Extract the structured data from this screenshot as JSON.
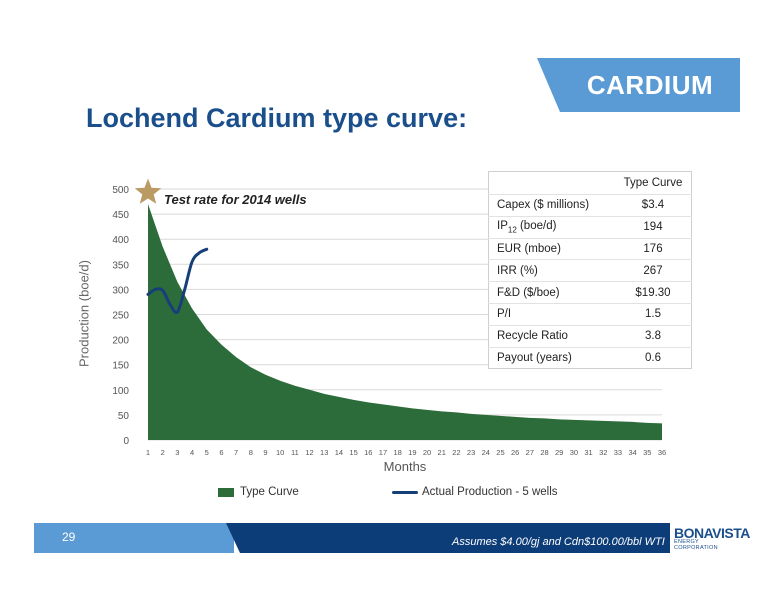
{
  "banner": {
    "text": "CARDIUM"
  },
  "title": "Lochend Cardium type curve:",
  "chart_data": {
    "type": "area",
    "ylabel": "Production (boe/d)",
    "xlabel": "Months",
    "ylim": [
      0,
      500
    ],
    "yticks": [
      0,
      50,
      100,
      150,
      200,
      250,
      300,
      350,
      400,
      450,
      500
    ],
    "x": [
      1,
      2,
      3,
      4,
      5,
      6,
      7,
      8,
      9,
      10,
      11,
      12,
      13,
      14,
      15,
      16,
      17,
      18,
      19,
      20,
      21,
      22,
      23,
      24,
      25,
      26,
      27,
      28,
      29,
      30,
      31,
      32,
      33,
      34,
      35,
      36
    ],
    "series": [
      {
        "name": "Type Curve",
        "kind": "area",
        "color": "#2c6b3a",
        "values": [
          470,
          385,
          315,
          262,
          220,
          190,
          165,
          145,
          130,
          118,
          108,
          100,
          92,
          86,
          80,
          75,
          71,
          67,
          63,
          60,
          57,
          55,
          52,
          50,
          48,
          46,
          44,
          43,
          41,
          40,
          39,
          38,
          37,
          36,
          34,
          33
        ]
      },
      {
        "name": "Actual Production - 5 wells",
        "kind": "line",
        "color": "#163f7a",
        "x": [
          1,
          1.5,
          2,
          2.5,
          3,
          3.5,
          4,
          4.5,
          5
        ],
        "values": [
          290,
          300,
          298,
          270,
          255,
          300,
          355,
          373,
          380
        ]
      }
    ],
    "annotation": {
      "text": "Test rate for 2014 wells",
      "x": 1,
      "y": 493,
      "marker": "star",
      "marker_color": "#b99b63"
    },
    "grid": true,
    "legend": "bottom"
  },
  "metrics_table": {
    "header": "Type Curve",
    "rows": [
      {
        "label": "Capex ($ millions)",
        "value": "$3.4"
      },
      {
        "label": "IP",
        "label_sub": "12",
        "label_after": " (boe/d)",
        "value": "194"
      },
      {
        "label": "EUR (mboe)",
        "value": "176"
      },
      {
        "label": "IRR (%)",
        "value": "267"
      },
      {
        "label": "F&D ($/boe)",
        "value": "$19.30"
      },
      {
        "label": "P/I",
        "value": "1.5"
      },
      {
        "label": "Recycle Ratio",
        "value": "3.8"
      },
      {
        "label": "Payout (years)",
        "value": "0.6"
      }
    ]
  },
  "footer": {
    "page": "29",
    "assumptions": "Assumes $4.00/gj and Cdn$100.00/bbl WTI",
    "logo_main": "BONAVISTA",
    "logo_sub": "ENERGY CORPORATION"
  }
}
